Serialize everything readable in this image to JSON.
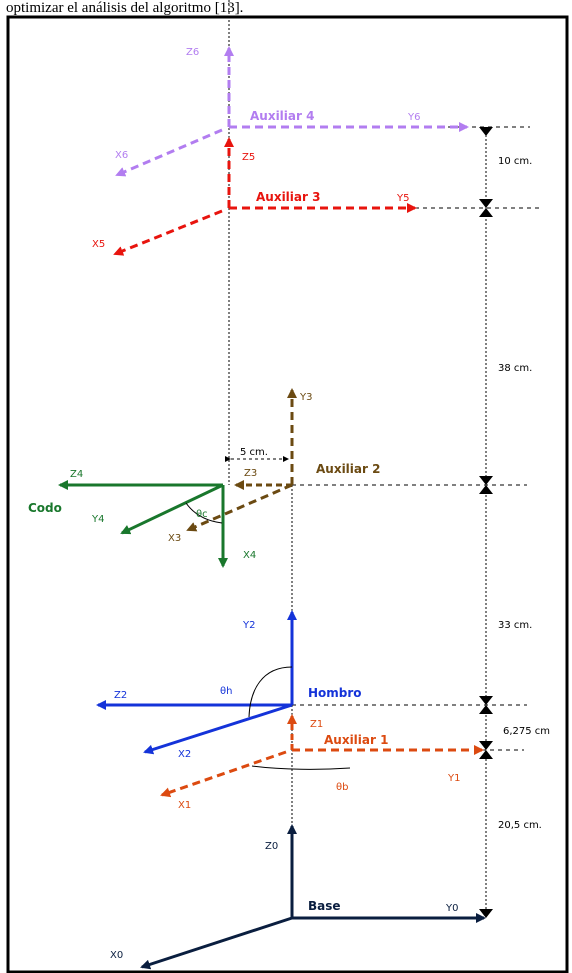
{
  "header": {
    "text": "optimizar el análisis del algoritmo [13]."
  },
  "frames": {
    "auxiliar4": {
      "name": "Auxiliar 4",
      "z": "Z6",
      "y": "Y6",
      "x": "X6",
      "color": "#b27df0"
    },
    "auxiliar3": {
      "name": "Auxiliar 3",
      "z": "Z5",
      "y": "Y5",
      "x": "X5",
      "color": "#e8140e"
    },
    "auxiliar2": {
      "name": "Auxiliar 2",
      "z": "Z3",
      "y": "Y3",
      "x": "X3",
      "color": "#6b4a12"
    },
    "codo": {
      "name": "Codo",
      "z": "Z4",
      "y": "Y4",
      "x": "X4",
      "angle": "θc",
      "color": "#19772c"
    },
    "hombro": {
      "name": "Hombro",
      "z": "Z2",
      "y": "Y2",
      "x": "X2",
      "angle": "θh",
      "color": "#1433d9"
    },
    "auxiliar1": {
      "name": "Auxiliar 1",
      "z": "Z1",
      "y": "Y1",
      "x": "X1",
      "angle": "θb",
      "color": "#dc4a10"
    },
    "base": {
      "name": "Base",
      "z": "Z0",
      "y": "Y0",
      "x": "X0",
      "color": "#0a1e3f"
    }
  },
  "dimensions": {
    "d_10": "10 cm.",
    "d_38": "38 cm.",
    "d_5": "5 cm.",
    "d_33": "33 cm.",
    "d_6275": "6,275 cm",
    "d_205": "20,5 cm."
  }
}
